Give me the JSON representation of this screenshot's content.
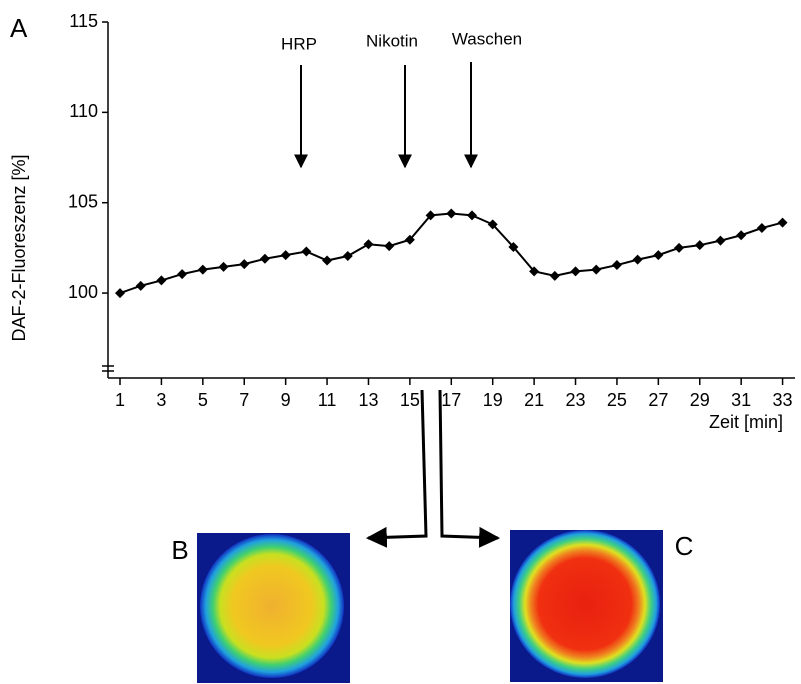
{
  "chart_data": {
    "type": "line",
    "y_label": "DAF-2-Fluoreszenz [%]",
    "x_label": "Zeit [min]",
    "annotations": [
      "HRP",
      "Nikotin",
      "Waschen"
    ],
    "x": [
      1,
      2,
      3,
      4,
      5,
      6,
      7,
      8,
      9,
      10,
      11,
      12,
      13,
      14,
      15,
      16,
      17,
      18,
      19,
      20,
      21,
      22,
      23,
      24,
      25,
      26,
      27,
      28,
      29,
      30,
      31,
      32,
      33
    ],
    "series": [
      {
        "color": "#000000",
        "values": [
          100.0,
          100.4,
          100.7,
          101.05,
          101.3,
          101.45,
          101.6,
          101.9,
          102.1,
          102.3,
          101.8,
          102.05,
          102.7,
          102.6,
          102.95,
          104.3,
          104.4,
          104.3,
          103.8,
          102.55,
          101.2,
          100.95,
          101.2,
          101.3,
          101.55,
          101.85,
          102.1,
          102.5,
          102.65,
          102.9,
          103.2,
          103.6,
          103.9
        ]
      }
    ],
    "xlim": [
      0.42,
      33.6
    ],
    "xticks": [
      1,
      3,
      5,
      7,
      9,
      11,
      13,
      15,
      17,
      19,
      21,
      23,
      25,
      27,
      29,
      31,
      33
    ],
    "ylim": [
      95.3,
      115
    ],
    "yticks": [
      100,
      105,
      110,
      115
    ]
  },
  "panel_labels": [
    "A",
    "B",
    "C"
  ]
}
